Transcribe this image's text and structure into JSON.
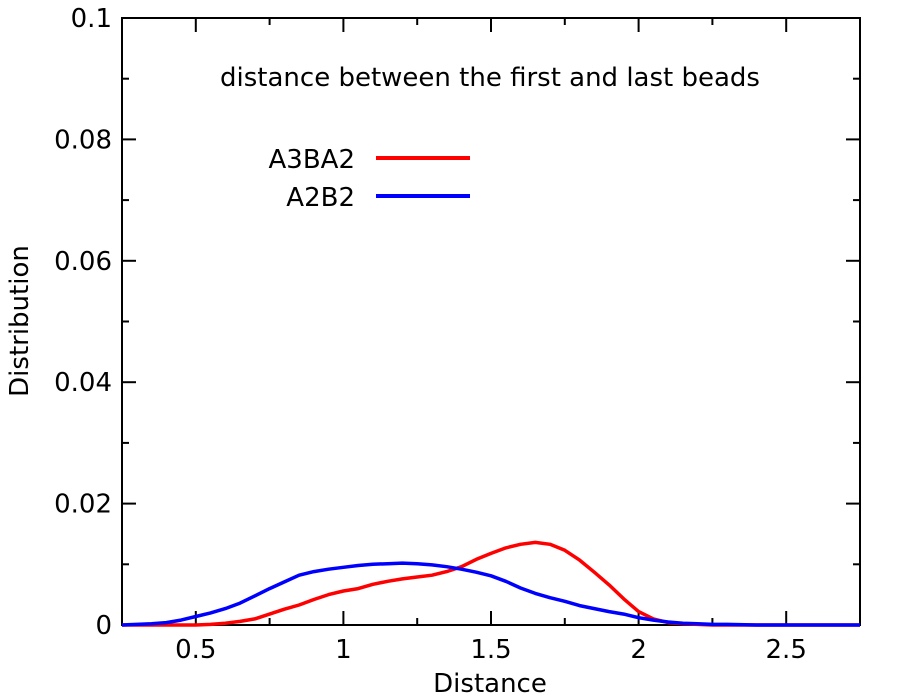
{
  "chart_data": {
    "type": "line",
    "title": "distance between the first and last beads",
    "xlabel": "Distance",
    "ylabel": "Distribution",
    "xlim": [
      0.25,
      2.75
    ],
    "ylim": [
      0,
      0.1
    ],
    "xticks": [
      0.5,
      1,
      1.5,
      2,
      2.5
    ],
    "xtick_labels": [
      "0.5",
      "1",
      "1.5",
      "2",
      "2.5"
    ],
    "yticks": [
      0,
      0.02,
      0.04,
      0.06,
      0.08,
      0.1
    ],
    "ytick_labels": [
      "0",
      "0.02",
      "0.04",
      "0.06",
      "0.08",
      "0.1"
    ],
    "grid": false,
    "legend_position": "top-left",
    "series": [
      {
        "name": "A3BA2",
        "color": "#ff0000",
        "x": [
          0.25,
          0.3,
          0.35,
          0.4,
          0.45,
          0.5,
          0.55,
          0.6,
          0.65,
          0.7,
          0.75,
          0.8,
          0.85,
          0.9,
          0.95,
          1.0,
          1.05,
          1.1,
          1.15,
          1.2,
          1.25,
          1.3,
          1.35,
          1.4,
          1.45,
          1.5,
          1.55,
          1.6,
          1.65,
          1.7,
          1.75,
          1.8,
          1.85,
          1.9,
          1.95,
          2.0,
          2.05,
          2.1,
          2.15,
          2.2,
          2.25,
          2.3,
          2.4,
          2.5,
          2.6,
          2.75
        ],
        "y": [
          0,
          0,
          0,
          0,
          0,
          0,
          0.0001,
          0.0003,
          0.0006,
          0.001,
          0.0018,
          0.0026,
          0.0033,
          0.0042,
          0.005,
          0.0056,
          0.006,
          0.0067,
          0.0072,
          0.0076,
          0.0079,
          0.0082,
          0.0088,
          0.0096,
          0.0108,
          0.0118,
          0.0127,
          0.0133,
          0.0136,
          0.0133,
          0.0123,
          0.0107,
          0.0087,
          0.0066,
          0.0043,
          0.0022,
          0.001,
          0.0004,
          0.0002,
          0.0001,
          0,
          0,
          0,
          0,
          0,
          0
        ]
      },
      {
        "name": "A2B2",
        "color": "#0000ff",
        "x": [
          0.25,
          0.3,
          0.35,
          0.4,
          0.45,
          0.5,
          0.55,
          0.6,
          0.65,
          0.7,
          0.75,
          0.8,
          0.85,
          0.9,
          0.95,
          1.0,
          1.05,
          1.1,
          1.15,
          1.2,
          1.25,
          1.3,
          1.35,
          1.4,
          1.45,
          1.5,
          1.55,
          1.6,
          1.65,
          1.7,
          1.75,
          1.8,
          1.85,
          1.9,
          1.95,
          2.0,
          2.05,
          2.1,
          2.15,
          2.2,
          2.25,
          2.3,
          2.4,
          2.5,
          2.6,
          2.75
        ],
        "y": [
          0,
          0.0001,
          0.0002,
          0.0004,
          0.0008,
          0.0014,
          0.002,
          0.0027,
          0.0036,
          0.0048,
          0.006,
          0.0071,
          0.0082,
          0.0088,
          0.0092,
          0.0095,
          0.0098,
          0.01,
          0.0101,
          0.0102,
          0.0101,
          0.0099,
          0.0096,
          0.0092,
          0.0087,
          0.0081,
          0.0072,
          0.0061,
          0.0052,
          0.0045,
          0.0039,
          0.0032,
          0.0027,
          0.0022,
          0.0018,
          0.0012,
          0.0008,
          0.0005,
          0.0003,
          0.0002,
          0.0001,
          0.0001,
          0,
          0,
          0,
          0
        ]
      }
    ]
  }
}
